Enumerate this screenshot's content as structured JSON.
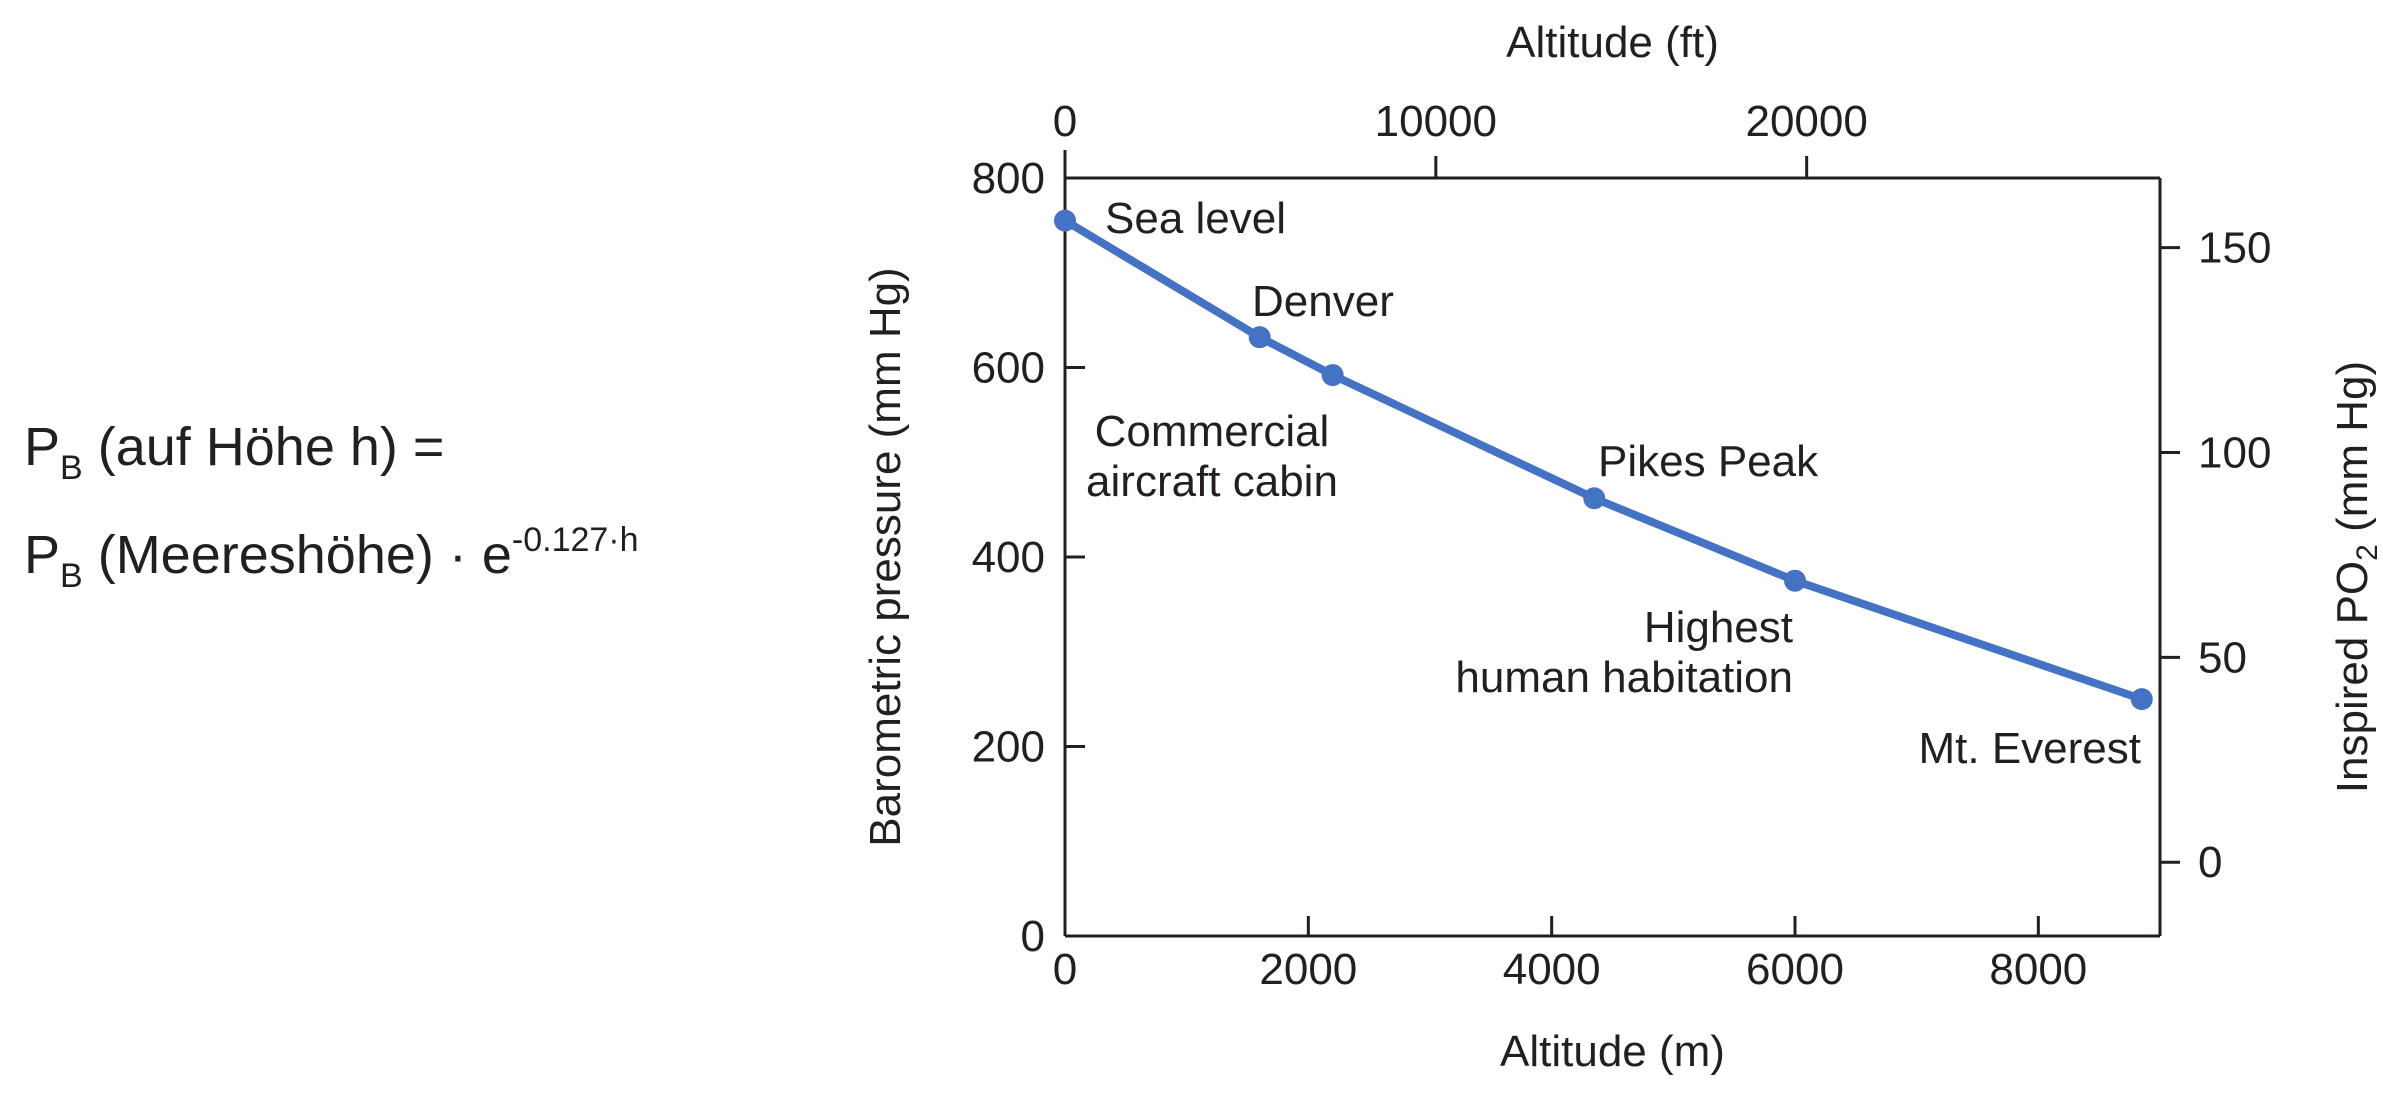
{
  "formula": {
    "line1": {
      "p": "P",
      "sub": "B",
      "rest": " (auf Höhe h) ="
    },
    "line2": {
      "p": "P",
      "sub": "B",
      "rest": " (Meereshöhe) · e",
      "sup": "-0.127·h"
    }
  },
  "chart_data": {
    "type": "line",
    "xlabel": "Altitude (m)",
    "x_ticks": [
      0,
      2000,
      4000,
      6000,
      8000
    ],
    "xlim": [
      0,
      9000
    ],
    "ylabel": "Barometric pressure (mm Hg)",
    "y_ticks": [
      0,
      200,
      400,
      600,
      800
    ],
    "ylim": [
      0,
      800
    ],
    "x2label": "Altitude (ft)",
    "x2_ticks": [
      0,
      10000,
      20000
    ],
    "x2lim": [
      0,
      29528
    ],
    "y2label_main": "Inspired PO",
    "y2label_sub": "2",
    "y2label_tail": " (mm Hg)",
    "y2_ticks": [
      0,
      50,
      100,
      150
    ],
    "y2lim": [
      -18,
      167
    ],
    "color": "#4472c4",
    "grid": false,
    "series": [
      {
        "x": [
          0,
          1600,
          2200,
          4350,
          6000,
          8850
        ],
        "y": [
          755,
          632,
          592,
          462,
          375,
          250
        ]
      }
    ],
    "annotations": [
      {
        "lines": [
          "Sea level"
        ],
        "anchor": "start"
      },
      {
        "lines": [
          "Denver"
        ],
        "anchor": "start"
      },
      {
        "lines": [
          "Commercial",
          "aircraft cabin"
        ],
        "anchor": "middle"
      },
      {
        "lines": [
          "Pikes Peak"
        ],
        "anchor": "start"
      },
      {
        "lines": [
          "Highest",
          "human habitation"
        ],
        "anchor": "end"
      },
      {
        "lines": [
          "Mt. Everest"
        ],
        "anchor": "end"
      }
    ]
  }
}
